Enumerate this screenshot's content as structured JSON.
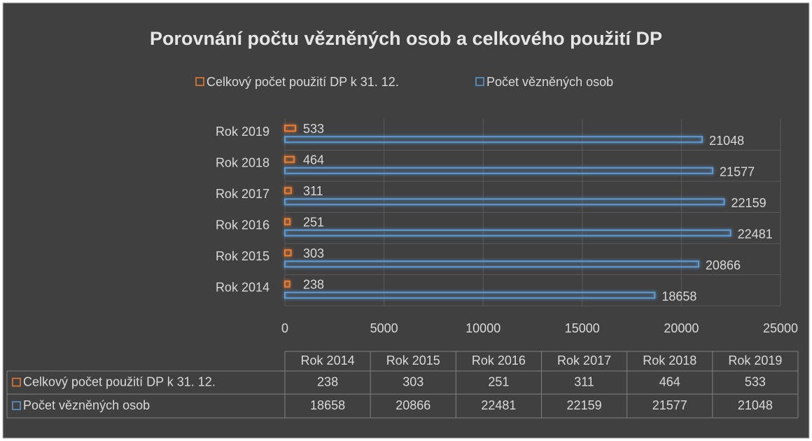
{
  "chart_data": {
    "type": "barh",
    "title": "Porovnání počtu vězněných osob a celkového použití DP",
    "categories": [
      "Rok 2014",
      "Rok 2015",
      "Rok 2016",
      "Rok 2017",
      "Rok 2018",
      "Rok 2019"
    ],
    "series": [
      {
        "name": "Celkový počet použití DP k 31. 12.",
        "color": "#ed7d31",
        "values": [
          238,
          303,
          251,
          311,
          464,
          533
        ]
      },
      {
        "name": "Počet vězněných osob",
        "color": "#5b9bd5",
        "values": [
          18658,
          20866,
          22481,
          22159,
          21577,
          21048
        ]
      }
    ],
    "xlim": [
      0,
      25000
    ],
    "xticks": [
      0,
      5000,
      10000,
      15000,
      20000,
      25000
    ],
    "grid": true,
    "legend": "top",
    "data_table": true
  }
}
